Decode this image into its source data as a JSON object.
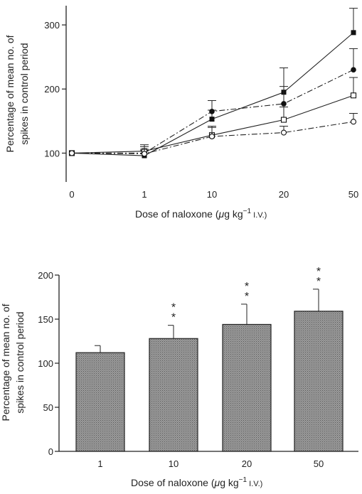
{
  "chart_data": [
    {
      "type": "line",
      "categories": [
        "0",
        "1",
        "10",
        "20",
        "50"
      ],
      "xlabel_prefix": "Dose of naloxone (",
      "xlabel_mu": "μ",
      "xlabel_unit": "g kg",
      "xlabel_sup": "−1",
      "xlabel_route": " I.V.)",
      "ylabel_line1": "Percentage of mean no. of",
      "ylabel_line2": "spikes in control period",
      "yticks": [
        100,
        200,
        300
      ],
      "ylim": [
        55,
        330
      ],
      "series": [
        {
          "marker": "filled-square",
          "dash": "solid",
          "values": [
            100,
            96,
            153,
            195,
            288
          ],
          "err": [
            0,
            8,
            14,
            38,
            38
          ]
        },
        {
          "marker": "filled-circle",
          "dash": "dashdot",
          "values": [
            100,
            100,
            165,
            177,
            230
          ],
          "err": [
            0,
            10,
            17,
            27,
            33
          ]
        },
        {
          "marker": "open-square",
          "dash": "solid",
          "values": [
            100,
            103,
            128,
            152,
            190
          ],
          "err": [
            0,
            10,
            14,
            20,
            28
          ]
        },
        {
          "marker": "open-circle",
          "dash": "dashdot",
          "values": [
            100,
            99,
            126,
            132,
            149
          ],
          "err": [
            0,
            7,
            14,
            10,
            13
          ]
        }
      ]
    },
    {
      "type": "bar",
      "categories": [
        "1",
        "10",
        "20",
        "50"
      ],
      "values": [
        112,
        128,
        144,
        159
      ],
      "err": [
        8,
        15,
        23,
        25
      ],
      "significance": [
        "",
        "**",
        "**",
        "**"
      ],
      "xlabel_prefix": "Dose of naloxone (",
      "xlabel_mu": "μ",
      "xlabel_unit": "g kg",
      "xlabel_sup": "−1",
      "xlabel_route": " I.V.)",
      "ylabel_line1": "Percentage of mean no. of",
      "ylabel_line2": "spikes in control period",
      "yticks": [
        0,
        50,
        100,
        150,
        200
      ],
      "ylim": [
        0,
        200
      ],
      "colors": {
        "bar_fill": "#8c8c8c",
        "bar_stroke": "#222222"
      }
    }
  ]
}
